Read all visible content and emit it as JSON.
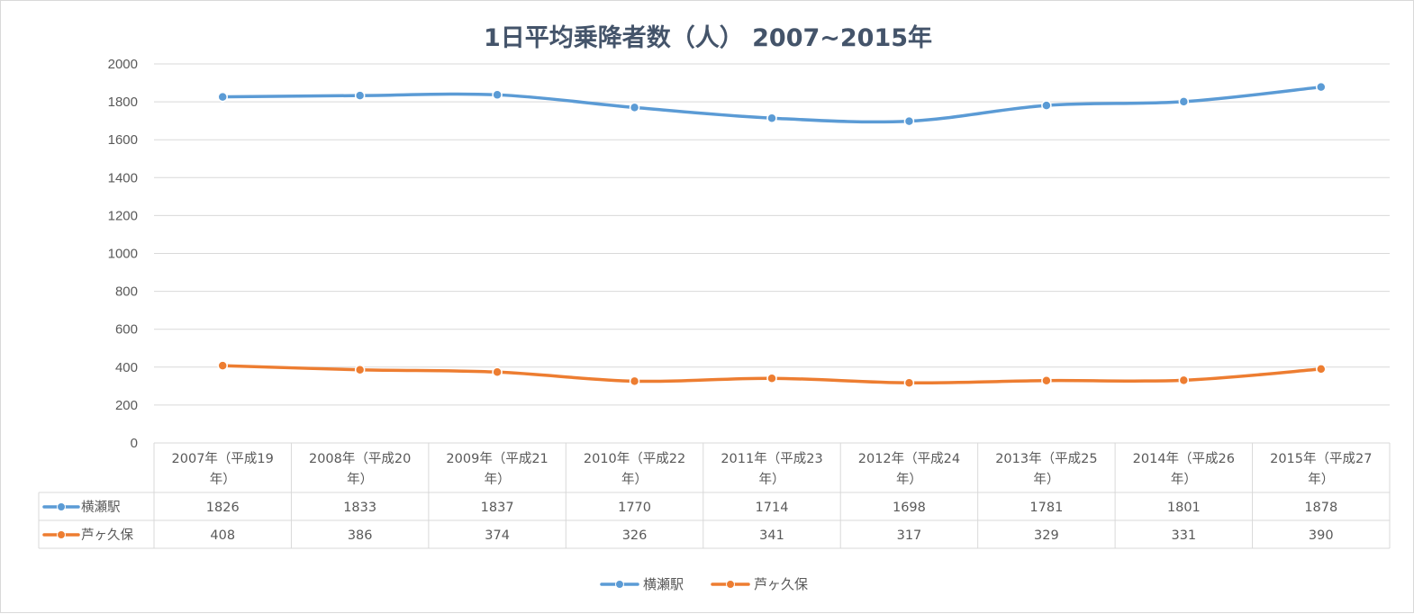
{
  "chart_data": {
    "type": "line",
    "title": "1日平均乗降者数（人） 2007~2015年",
    "categories": [
      [
        "2007年（平成19",
        "年）"
      ],
      [
        "2008年（平成20",
        "年）"
      ],
      [
        "2009年（平成21",
        "年）"
      ],
      [
        "2010年（平成22",
        "年）"
      ],
      [
        "2011年（平成23",
        "年）"
      ],
      [
        "2012年（平成24",
        "年）"
      ],
      [
        "2013年（平成25",
        "年）"
      ],
      [
        "2014年（平成26",
        "年）"
      ],
      [
        "2015年（平成27",
        "年）"
      ]
    ],
    "series": [
      {
        "name": "横瀬駅",
        "color": "#5b9bd5",
        "values": [
          1826,
          1833,
          1837,
          1770,
          1714,
          1698,
          1781,
          1801,
          1878
        ]
      },
      {
        "name": "芦ヶ久保",
        "color": "#ed7d31",
        "values": [
          408,
          386,
          374,
          326,
          341,
          317,
          329,
          331,
          390
        ]
      }
    ],
    "ylim": [
      0,
      2000
    ],
    "yticks": [
      0,
      200,
      400,
      600,
      800,
      1000,
      1200,
      1400,
      1600,
      1800,
      2000
    ],
    "grid": true,
    "data_table": true,
    "legend_position": "bottom"
  }
}
